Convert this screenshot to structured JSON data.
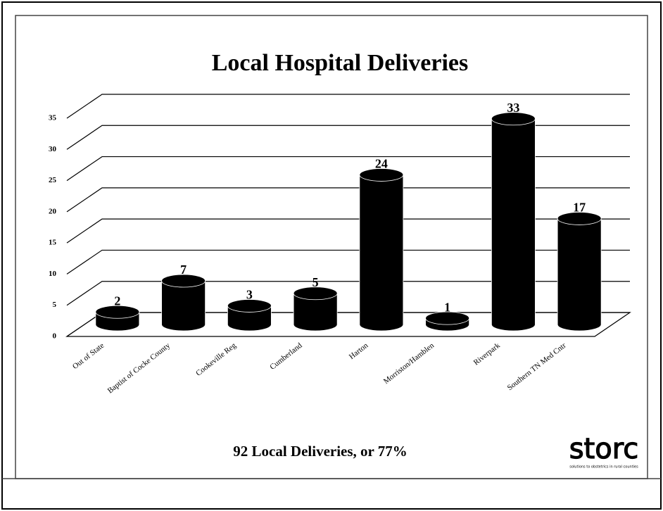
{
  "chart_data": {
    "type": "bar3d",
    "title": "Local Hospital Deliveries",
    "categories": [
      "Out of State",
      "Baptist of Cocke County",
      "Cookeville Reg",
      "Cumberland",
      "Harton",
      "Morriston/Hamblen",
      "Riverpark",
      "Southern TN Med Cntr"
    ],
    "values": [
      2,
      7,
      3,
      5,
      24,
      1,
      33,
      17
    ],
    "color": "#000000",
    "ylim": [
      0,
      35
    ],
    "yticks": [
      0,
      5,
      10,
      15,
      20,
      25,
      30,
      35
    ],
    "grid": true,
    "footer": "92 Local Deliveries, or 77%",
    "logo": "storc",
    "logo_tagline": "solutions to obstetrics in rural counties"
  }
}
